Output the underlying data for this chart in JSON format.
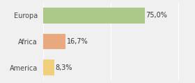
{
  "categories": [
    "Europa",
    "Africa",
    "America"
  ],
  "values": [
    75.0,
    16.7,
    8.3
  ],
  "bar_colors": [
    "#adc98a",
    "#e8a97e",
    "#f0d07a"
  ],
  "labels": [
    "75,0%",
    "16,7%",
    "8,3%"
  ],
  "xlim": [
    0,
    105
  ],
  "background_color": "#f0f0f0",
  "bar_height": 0.6,
  "label_fontsize": 7.0,
  "tick_fontsize": 7.0
}
